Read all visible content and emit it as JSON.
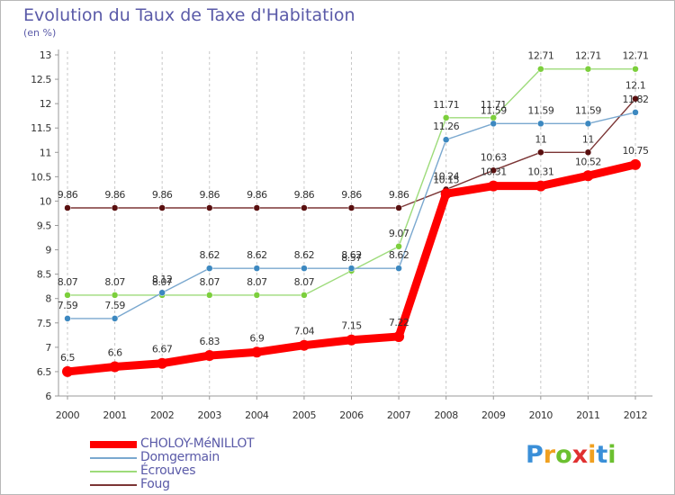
{
  "chart_data": {
    "type": "line",
    "title": "Evolution du Taux de Taxe d'Habitation",
    "unit_label": "(en %)",
    "x": [
      "2000",
      "2001",
      "2002",
      "2003",
      "2004",
      "2005",
      "2006",
      "2007",
      "2008",
      "2009",
      "2010",
      "2011",
      "2012"
    ],
    "y_ticks": [
      "6",
      "6.5",
      "7",
      "7.5",
      "8",
      "8.5",
      "9",
      "9.5",
      "10",
      "10.5",
      "11",
      "11.5",
      "12",
      "12.5",
      "13"
    ],
    "ylim": [
      6,
      13
    ],
    "grid": "vertical dashed",
    "legend_position": "bottom-left",
    "series": [
      {
        "name": "Foug",
        "color": "#7b3535",
        "point_color": "#5a1010",
        "values": [
          9.86,
          9.86,
          9.86,
          9.86,
          9.86,
          9.86,
          9.86,
          9.86,
          10.24,
          10.63,
          11,
          11,
          12.1
        ],
        "labels": [
          "9.86",
          "9.86",
          "9.86",
          "9.86",
          "9.86",
          "9.86",
          "9.86",
          "9.86",
          "10.24",
          "10.63",
          "11",
          "11",
          "12.1"
        ]
      },
      {
        "name": "Écrouves",
        "color": "#9ddb7a",
        "point_color": "#7ccf3c",
        "values": [
          8.07,
          8.07,
          8.07,
          8.07,
          8.07,
          8.07,
          8.57,
          9.07,
          11.71,
          11.71,
          12.71,
          12.71,
          12.71
        ],
        "labels": [
          "8.07",
          "8.07",
          "8.07",
          "8.07",
          "8.07",
          "8.07",
          "8.57",
          "9.07",
          "11.71",
          "11.71",
          "12.71",
          "12.71",
          "12.71"
        ]
      },
      {
        "name": "Domgermain",
        "color": "#7aa8cf",
        "point_color": "#3c88c0",
        "values": [
          7.59,
          7.59,
          8.12,
          8.62,
          8.62,
          8.62,
          8.62,
          8.62,
          11.26,
          11.59,
          11.59,
          11.59,
          11.82
        ],
        "labels": [
          "7.59",
          "7.59",
          "8.12",
          "8.62",
          "8.62",
          "8.62",
          "8.62",
          "8.62",
          "11.26",
          "11.59",
          "11.59",
          "11.59",
          "11.82"
        ]
      },
      {
        "name": "CHOLOY-MéNILLOT",
        "color": "#ff0000",
        "point_color": "#ff0000",
        "values": [
          6.5,
          6.6,
          6.67,
          6.83,
          6.9,
          7.04,
          7.15,
          7.22,
          10.15,
          10.31,
          10.31,
          10.52,
          10.75
        ],
        "labels": [
          "6.5",
          "6.6",
          "6.67",
          "6.83",
          "6.9",
          "7.04",
          "7.15",
          "7.22",
          "10.15",
          "10.31",
          "10.31",
          "10.52",
          "10.75"
        ]
      }
    ]
  },
  "legend": [
    {
      "name": "CHOLOY-MéNILLOT",
      "color": "#ff0000"
    },
    {
      "name": "Domgermain",
      "color": "#7aa8cf"
    },
    {
      "name": "Écrouves",
      "color": "#9ddb7a"
    },
    {
      "name": "Foug",
      "color": "#7b3535"
    }
  ],
  "logo": {
    "text": "Proxiti",
    "letters": [
      "P",
      "r",
      "o",
      "x",
      "i",
      "t",
      "i"
    ],
    "colors": [
      "#3a8fd8",
      "#f0a020",
      "#6cc030",
      "#e03030",
      "#f0a020",
      "#3a8fd8",
      "#6cc030"
    ]
  }
}
